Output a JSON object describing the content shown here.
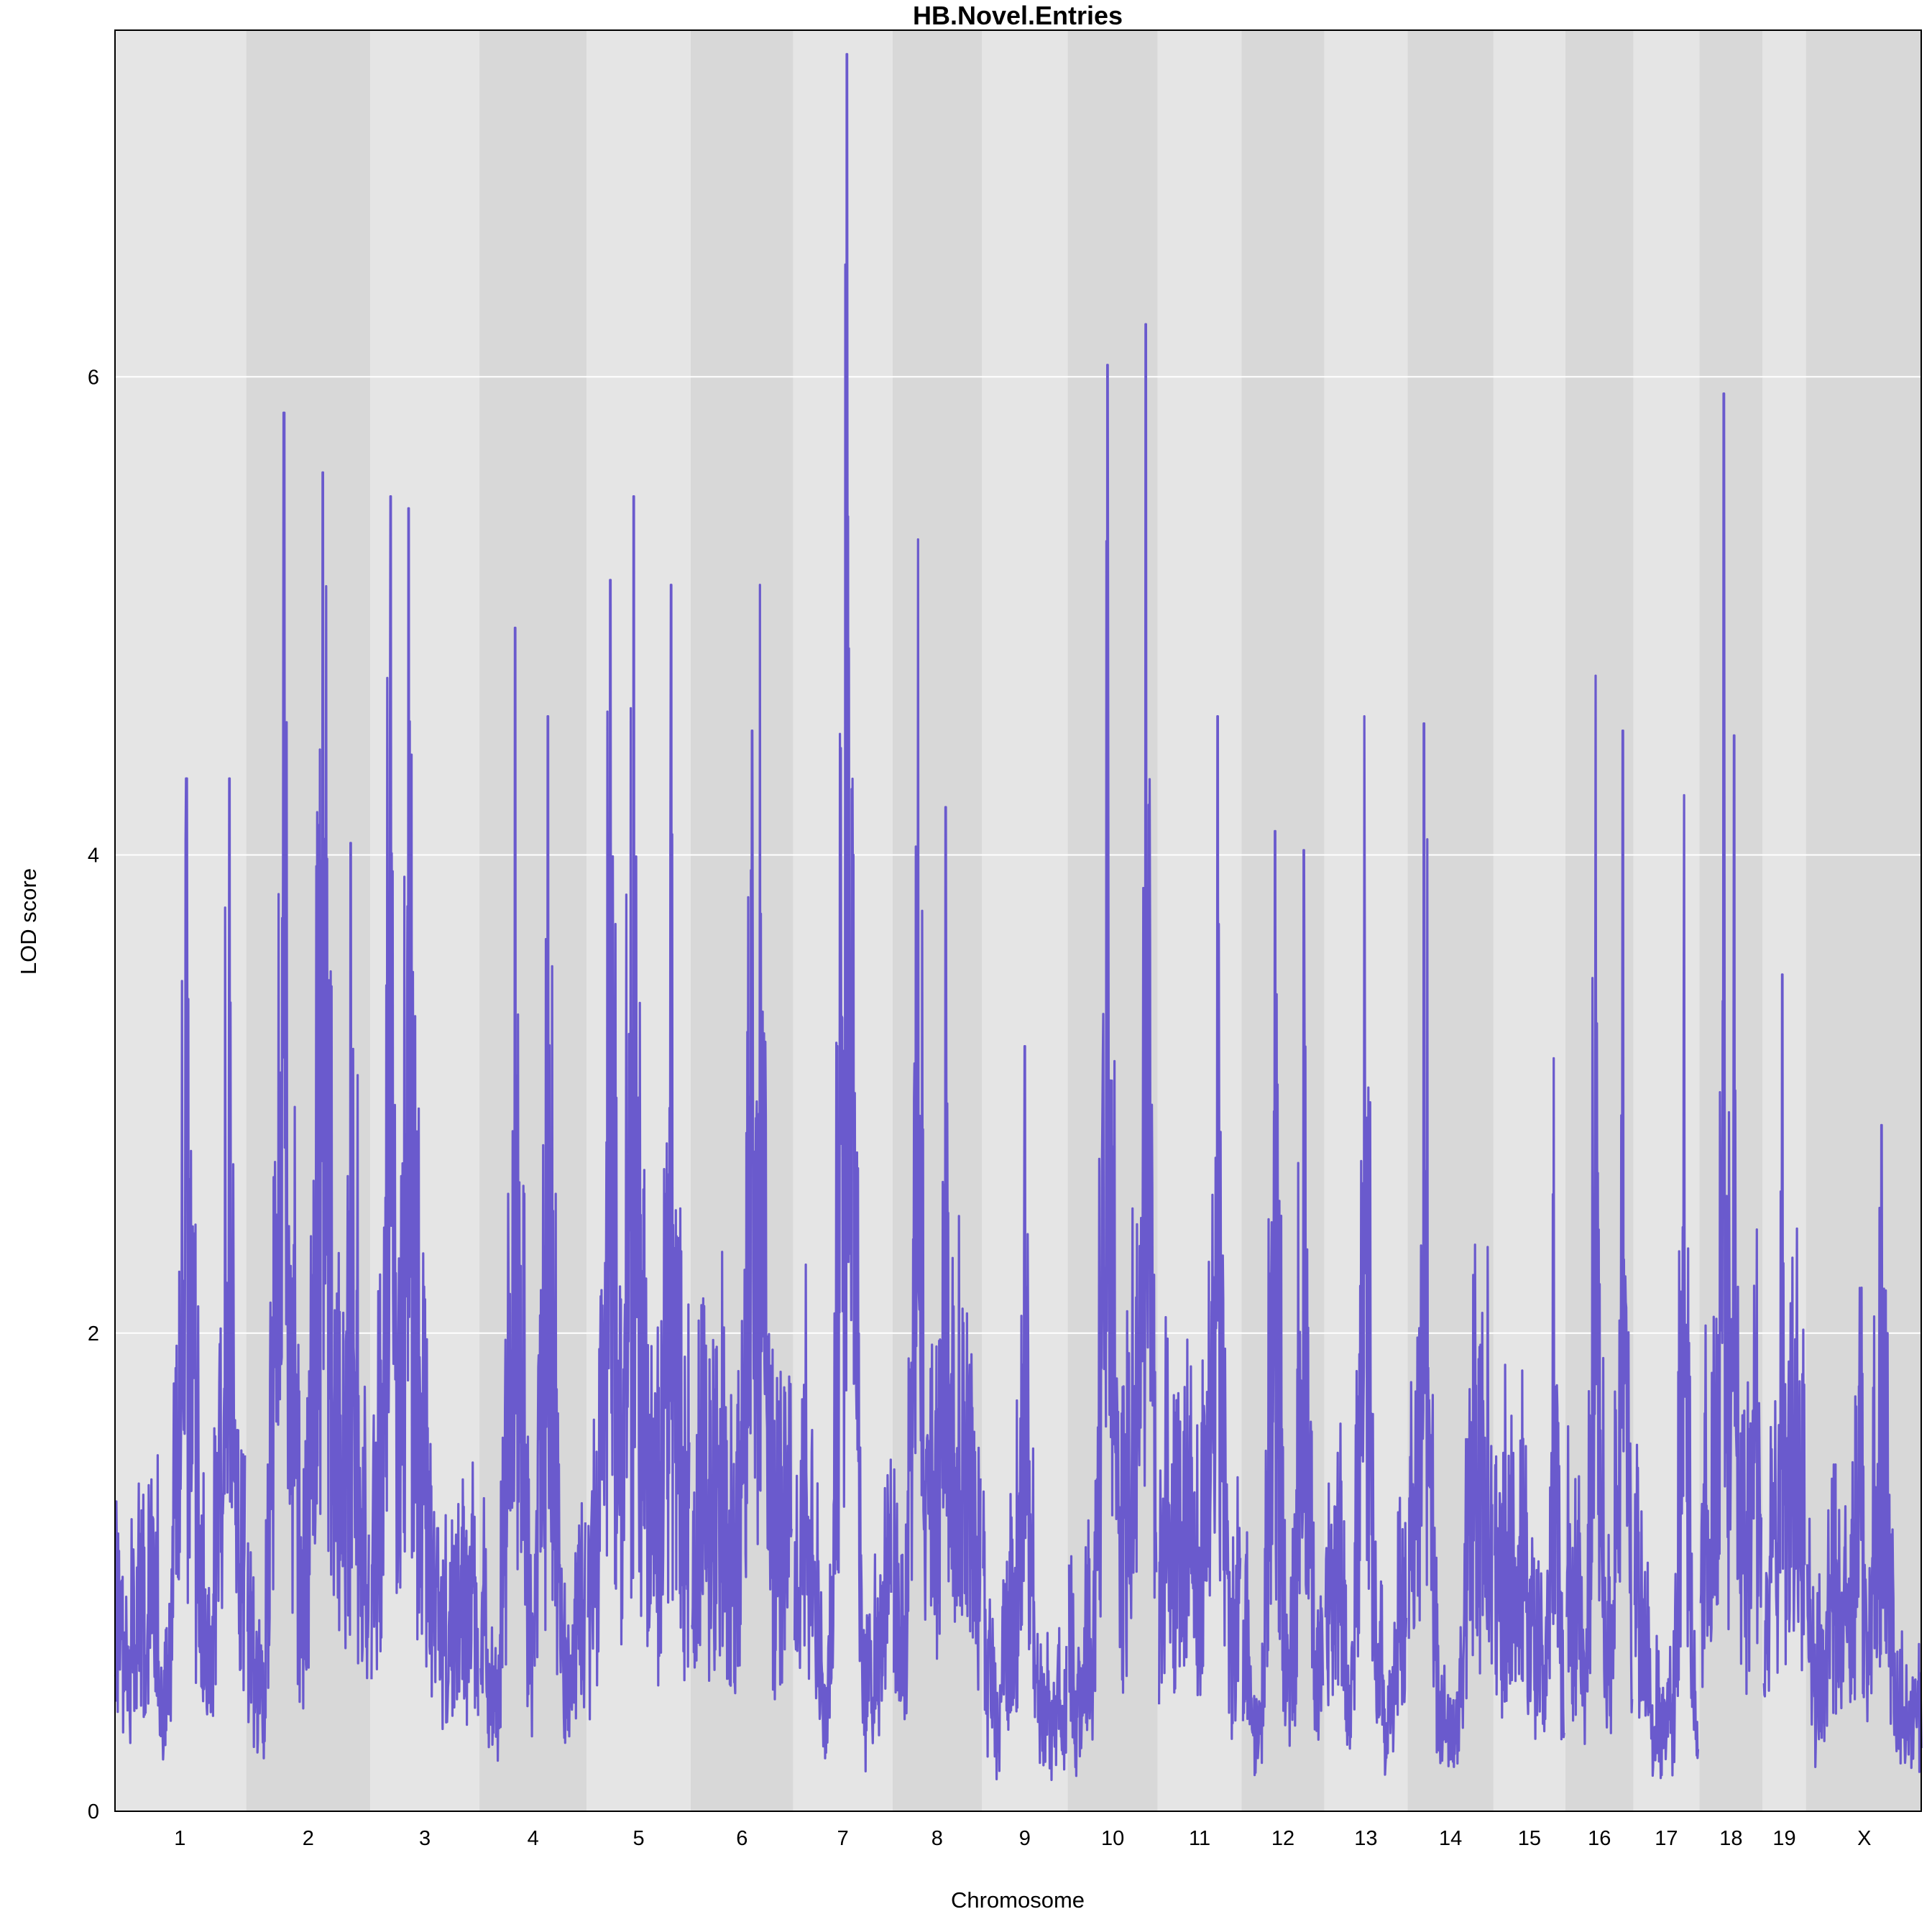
{
  "chart_data": {
    "type": "line",
    "title": "HB.Novel.Entries",
    "xlabel": "Chromosome",
    "ylabel": "LOD score",
    "ylim": [
      0,
      7.45
    ],
    "yticks": [
      0,
      2,
      4,
      6
    ],
    "grid": "horizontal",
    "line_color": "#6a5acd",
    "band_colors": [
      "#e5e5e5",
      "#d8d8d8"
    ],
    "chromosomes": [
      {
        "name": "1",
        "length": 195
      },
      {
        "name": "2",
        "length": 182
      },
      {
        "name": "3",
        "length": 160
      },
      {
        "name": "4",
        "length": 157
      },
      {
        "name": "5",
        "length": 152
      },
      {
        "name": "6",
        "length": 150
      },
      {
        "name": "7",
        "length": 145
      },
      {
        "name": "8",
        "length": 130
      },
      {
        "name": "9",
        "length": 125
      },
      {
        "name": "10",
        "length": 131
      },
      {
        "name": "11",
        "length": 122
      },
      {
        "name": "12",
        "length": 120
      },
      {
        "name": "13",
        "length": 121
      },
      {
        "name": "14",
        "length": 125
      },
      {
        "name": "15",
        "length": 104
      },
      {
        "name": "16",
        "length": 98
      },
      {
        "name": "17",
        "length": 95
      },
      {
        "name": "18",
        "length": 91
      },
      {
        "name": "19",
        "length": 61
      },
      {
        "name": "X",
        "length": 171
      }
    ],
    "peaks": [
      {
        "chr": "1",
        "pos": 0.55,
        "lod": 4.32
      },
      {
        "chr": "1",
        "pos": 0.88,
        "lod": 4.32
      },
      {
        "chr": "2",
        "pos": 0.3,
        "lod": 5.85
      },
      {
        "chr": "2",
        "pos": 0.62,
        "lod": 5.6
      },
      {
        "chr": "2",
        "pos": 0.85,
        "lod": 4.05
      },
      {
        "chr": "3",
        "pos": 0.18,
        "lod": 5.5
      },
      {
        "chr": "3",
        "pos": 0.35,
        "lod": 5.45
      },
      {
        "chr": "4",
        "pos": 0.33,
        "lod": 4.95
      },
      {
        "chr": "4",
        "pos": 0.64,
        "lod": 4.58
      },
      {
        "chr": "5",
        "pos": 0.22,
        "lod": 5.15
      },
      {
        "chr": "5",
        "pos": 0.45,
        "lod": 5.5
      },
      {
        "chr": "5",
        "pos": 0.82,
        "lod": 5.13
      },
      {
        "chr": "6",
        "pos": 0.6,
        "lod": 4.52
      },
      {
        "chr": "6",
        "pos": 0.68,
        "lod": 5.13
      },
      {
        "chr": "7",
        "pos": 0.54,
        "lod": 7.35
      },
      {
        "chr": "8",
        "pos": 0.28,
        "lod": 5.32
      },
      {
        "chr": "8",
        "pos": 0.6,
        "lod": 4.2
      },
      {
        "chr": "9",
        "pos": 0.5,
        "lod": 3.2
      },
      {
        "chr": "10",
        "pos": 0.44,
        "lod": 6.05
      },
      {
        "chr": "10",
        "pos": 0.88,
        "lod": 6.22
      },
      {
        "chr": "11",
        "pos": 0.72,
        "lod": 4.58
      },
      {
        "chr": "12",
        "pos": 0.4,
        "lod": 4.1
      },
      {
        "chr": "12",
        "pos": 0.76,
        "lod": 4.02
      },
      {
        "chr": "13",
        "pos": 0.48,
        "lod": 4.58
      },
      {
        "chr": "14",
        "pos": 0.18,
        "lod": 4.55
      },
      {
        "chr": "15",
        "pos": 0.85,
        "lod": 3.15
      },
      {
        "chr": "16",
        "pos": 0.44,
        "lod": 4.75
      },
      {
        "chr": "16",
        "pos": 0.86,
        "lod": 4.52
      },
      {
        "chr": "17",
        "pos": 0.78,
        "lod": 4.25
      },
      {
        "chr": "18",
        "pos": 0.38,
        "lod": 5.93
      },
      {
        "chr": "18",
        "pos": 0.55,
        "lod": 4.5
      },
      {
        "chr": "19",
        "pos": 0.45,
        "lod": 3.5
      },
      {
        "chr": "X",
        "pos": 0.65,
        "lod": 2.87
      }
    ]
  }
}
